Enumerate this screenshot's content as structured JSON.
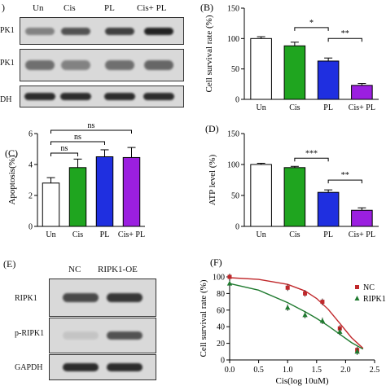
{
  "blot_top": {
    "panel_label": ")",
    "lanes": [
      "Un",
      "Cis",
      "PL",
      "Cis+ PL"
    ],
    "rows": [
      "PK1",
      "PK1",
      "DH"
    ],
    "intensities": [
      [
        0.45,
        0.7,
        0.8,
        0.95
      ],
      [
        0.55,
        0.45,
        0.55,
        0.6
      ],
      [
        0.9,
        0.9,
        0.9,
        0.9
      ]
    ]
  },
  "blot_bottom": {
    "panel_label": "(E)",
    "lanes": [
      "NC",
      "RIPK1-OE"
    ],
    "rows": [
      "RIPK1",
      "p-RIPK1",
      "GAPDH"
    ],
    "intensities": [
      [
        0.75,
        0.85
      ],
      [
        0.1,
        0.7
      ],
      [
        0.9,
        0.9
      ]
    ]
  },
  "colors": {
    "un": "#ffffff",
    "cis": "#1fa51f",
    "pl": "#1f2fe0",
    "cispl": "#9b1fe0",
    "nc": "#c0282b",
    "ripk1": "#1f7a2f"
  },
  "chart_data": [
    {
      "id": "B",
      "panel_label": "(B)",
      "type": "bar",
      "categories": [
        "Un",
        "Cis",
        "PL",
        "Cis+ PL"
      ],
      "values": [
        100,
        88,
        63,
        23
      ],
      "errors": [
        3,
        6,
        5,
        3
      ],
      "ylabel": "Cell survival rate (%)",
      "ylim": [
        0,
        150
      ],
      "yticks": [
        "0",
        "50",
        "100",
        "150"
      ],
      "significance": [
        {
          "from": 1,
          "to": 2,
          "label": "*"
        },
        {
          "from": 2,
          "to": 3,
          "label": "**"
        }
      ]
    },
    {
      "id": "C",
      "panel_label": "(C)",
      "type": "bar",
      "categories": [
        "Un",
        "Cis",
        "PL",
        "Cis+ PL"
      ],
      "values": [
        2.8,
        3.8,
        4.5,
        4.45
      ],
      "errors": [
        0.35,
        0.55,
        0.45,
        0.65
      ],
      "ylabel": "Apoptosis(%)",
      "ylim": [
        0,
        6
      ],
      "yticks": [
        "0",
        "2",
        "4",
        "6"
      ],
      "significance": [
        {
          "from": 0,
          "to": 1,
          "label": "ns"
        },
        {
          "from": 0,
          "to": 2,
          "label": "ns"
        },
        {
          "from": 0,
          "to": 3,
          "label": "ns"
        }
      ]
    },
    {
      "id": "D",
      "panel_label": "(D)",
      "type": "bar",
      "categories": [
        "Un",
        "Cis",
        "PL",
        "Cis+ PL"
      ],
      "values": [
        100,
        95,
        55,
        26
      ],
      "errors": [
        2,
        2,
        4,
        4
      ],
      "ylabel": "ATP level (%)",
      "ylim": [
        0,
        150
      ],
      "yticks": [
        "0",
        "50",
        "100",
        "150"
      ],
      "significance": [
        {
          "from": 1,
          "to": 2,
          "label": "***"
        },
        {
          "from": 2,
          "to": 3,
          "label": "**"
        }
      ]
    },
    {
      "id": "F",
      "panel_label": "(F)",
      "type": "scatter",
      "xlabel": "Cis(log 10uM)",
      "ylabel": "Cell survival rate (%)",
      "xlim": [
        0,
        2.5
      ],
      "ylim": [
        0,
        100
      ],
      "xticks": [
        "0.0",
        "0.5",
        "1.0",
        "1.5",
        "2.0",
        "2.5"
      ],
      "yticks": [
        "0",
        "20",
        "40",
        "60",
        "80",
        "100"
      ],
      "series": [
        {
          "name": "NC",
          "marker": "square",
          "x": [
            0,
            1.0,
            1.3,
            1.6,
            1.9,
            2.2
          ],
          "y": [
            100,
            87,
            80,
            70,
            38,
            12
          ],
          "curve_x": [
            0,
            0.5,
            1.0,
            1.3,
            1.5,
            1.7,
            1.9,
            2.1,
            2.3
          ],
          "curve_y": [
            99,
            97,
            91,
            83,
            74,
            61,
            44,
            27,
            14
          ]
        },
        {
          "name": "RIPK1",
          "marker": "triangle",
          "x": [
            0,
            1.0,
            1.3,
            1.6,
            1.9,
            2.2
          ],
          "y": [
            92,
            63,
            54,
            47,
            34,
            10
          ],
          "curve_x": [
            0,
            0.5,
            1.0,
            1.3,
            1.5,
            1.7,
            1.9,
            2.1,
            2.3
          ],
          "curve_y": [
            92,
            84,
            69,
            58,
            50,
            41,
            31,
            21,
            13
          ]
        }
      ]
    }
  ]
}
